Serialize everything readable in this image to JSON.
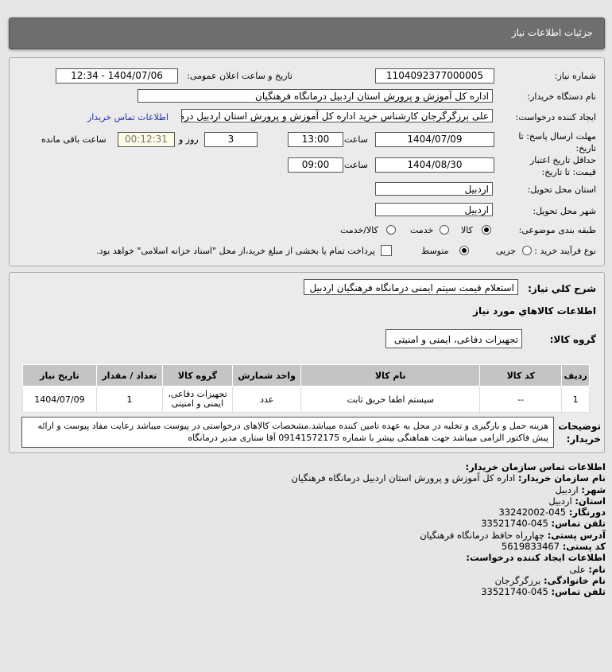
{
  "header": {
    "title": "جزئیات اطلاعات نیاز"
  },
  "form": {
    "need_number_label": "شماره نیاز:",
    "need_number": "1104092377000005",
    "announce_label": "تاریخ و ساعت اعلان عمومی:",
    "announce_value": "1404/07/06 - 12:34",
    "buyer_org_label": "نام دستگاه خریدار:",
    "buyer_org": "اداره کل آموزش و پرورش استان اردبیل درمانگاه فرهنگیان",
    "creator_label": "ایجاد کننده درخواست:",
    "creator": "علی برزگرگرجان کارشناس خرید اداره کل آموزش و پرورش استان اردبیل درمانگاه",
    "contact_link": "اطلاعات تماس خریدار",
    "deadline_label": "مهلت ارسال پاسخ: تا تاریخ:",
    "deadline_date": "1404/07/09",
    "time_label": "ساعت",
    "deadline_time": "13:00",
    "days": "3",
    "days_label": "روز و",
    "remaining": "00:12:31",
    "remaining_label": "ساعت باقی مانده",
    "validity_label": "حداقل تاریخ اعتبار قیمت: تا تاریخ:",
    "validity_date": "1404/08/30",
    "validity_time": "09:00",
    "province_label": "استان محل تحویل:",
    "province": "اردبیل",
    "city_label": "شهر محل تحویل:",
    "city": "اردبیل",
    "category_label": "طبقه بندی موضوعی:",
    "category_options": [
      "کالا",
      "خدمت",
      "کالا/خدمت"
    ],
    "category_selected": "کالا",
    "process_label": "نوع فرآیند خرید :",
    "process_options": [
      "جزیی",
      "متوسط"
    ],
    "process_selected": "متوسط",
    "payment_note": "پرداخت تمام یا بخشی از مبلغ خرید،از محل \"اسناد خزانه اسلامی\" خواهد بود.",
    "payment_checked": false
  },
  "details": {
    "desc_label": "شرح کلي نياز:",
    "desc": "استعلام قیمت سیتم ایمنی درمانگاه فرهنگیان اردبیل",
    "goods_title": "اطلاعات کالاهاي مورد نياز",
    "group_label": "گروه کالا:",
    "group": "تجهیزات دفاعی، ایمنی و امنیتی",
    "table": {
      "headers": [
        "ردیف",
        "کد کالا",
        "نام کالا",
        "واحد شمارش",
        "گروه کالا",
        "تعداد / مقدار",
        "تاریخ نیاز"
      ],
      "rows": [
        [
          "1",
          "--",
          "سیستم اطفا حریق ثابت",
          "عدد",
          "تجهیزات دفاعی، ایمنی و امنیتی",
          "1",
          "1404/07/09"
        ]
      ]
    },
    "notes_label": "توضیحات خریدار:",
    "notes": "هزینه حمل و بارگیری و تخلیه در محل به عهده تامین کننده میباشد.مشخصات کالاهای درخواستی در پیوست میباشد رعایت مفاد پیوست و ارائه پیش فاکتور الزامی میباشد جهت هماهنگی بیشر با شماره 09141572175 آقا ستاری مدیر درمانگاه"
  },
  "contact": {
    "title": "اطلاعات تماس سازمان خریدار:",
    "lines": [
      {
        "k": "نام سازمان خریدار:",
        "v": "اداره کل آموزش و پرورش استان اردبیل درمانگاه فرهنگیان"
      },
      {
        "k": "شهر:",
        "v": "اردبیل"
      },
      {
        "k": "استان:",
        "v": "اردبیل"
      },
      {
        "k": "دورنگار:",
        "v": "045-33242002"
      },
      {
        "k": "تلفن تماس:",
        "v": "045-33521740"
      },
      {
        "k": "آدرس پستی:",
        "v": "چهارراه حافظ درمانگاه فرهنگیان"
      },
      {
        "k": "کد پستی:",
        "v": "5619833467"
      }
    ],
    "creator_title": "اطلاعات ایجاد کننده درخواست:",
    "creator_lines": [
      {
        "k": "نام:",
        "v": "علی"
      },
      {
        "k": "نام خانوادگی:",
        "v": "برزگرگرجان"
      },
      {
        "k": "تلفن تماس:",
        "v": "045-33521740"
      }
    ]
  }
}
